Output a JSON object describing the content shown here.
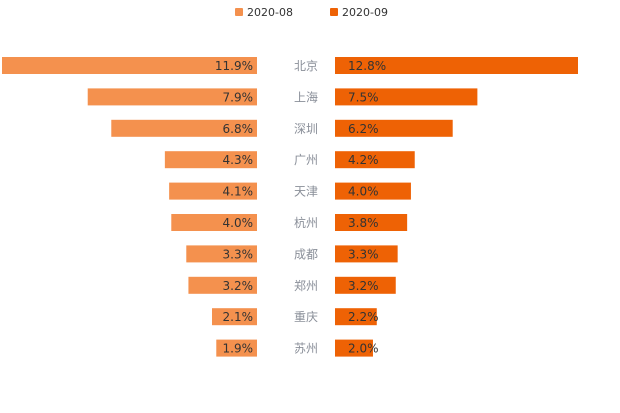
{
  "chart_data": {
    "type": "bar",
    "orientation": "horizontal-butterfly",
    "categories": [
      "北京",
      "上海",
      "深圳",
      "广州",
      "天津",
      "杭州",
      "成都",
      "郑州",
      "重庆",
      "苏州"
    ],
    "series": [
      {
        "name": "2020-08",
        "color": "#F4914E",
        "side": "left",
        "values": [
          11.9,
          7.9,
          6.8,
          4.3,
          4.1,
          4.0,
          3.3,
          3.2,
          2.1,
          1.9
        ],
        "labels": [
          "11.9%",
          "7.9%",
          "6.8%",
          "4.3%",
          "4.1%",
          "4.0%",
          "3.3%",
          "3.2%",
          "2.1%",
          "1.9%"
        ]
      },
      {
        "name": "2020-09",
        "color": "#EE6205",
        "side": "right",
        "values": [
          12.8,
          7.5,
          6.2,
          4.2,
          4.0,
          3.8,
          3.3,
          3.2,
          2.2,
          2.0
        ],
        "labels": [
          "12.8%",
          "7.5%",
          "6.2%",
          "4.2%",
          "4.0%",
          "3.8%",
          "3.3%",
          "3.2%",
          "2.2%",
          "2.0%"
        ]
      }
    ],
    "title": "",
    "xlabel": "",
    "ylabel": "",
    "value_unit": "%",
    "legend_position": "top-center",
    "grid": false
  }
}
